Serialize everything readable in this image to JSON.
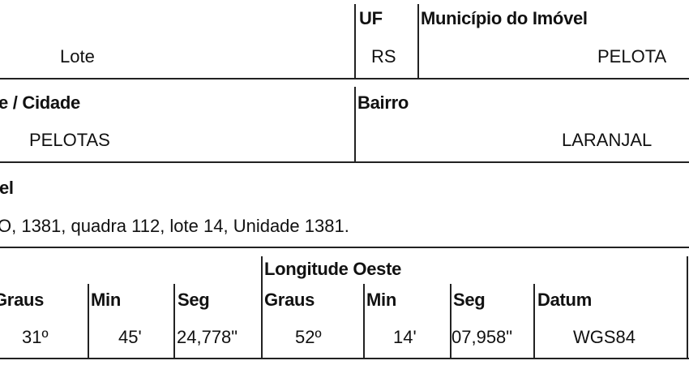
{
  "row1": {
    "uf_label": "UF",
    "municipio_label": "Município do Imóvel",
    "lote_value": "Lote",
    "uf_value": "RS",
    "municipio_value": "PELOTA"
  },
  "row2": {
    "cidade_label": "e / Cidade",
    "bairro_label": "Bairro",
    "cidade_value": "PELOTAS",
    "bairro_value": "LARANJAL"
  },
  "row3": {
    "label": "el",
    "value": "O, 1381, quadra 112, lote 14, Unidade 1381."
  },
  "coords": {
    "longitude_label": "Longitude Oeste",
    "headers": [
      "Graus",
      "Min",
      "Seg",
      "Graus",
      "Min",
      "Seg",
      "Datum"
    ],
    "values": [
      "31º",
      "45'",
      "24,778\"",
      "52º",
      "14'",
      "07,958\"",
      "WGS84"
    ]
  }
}
